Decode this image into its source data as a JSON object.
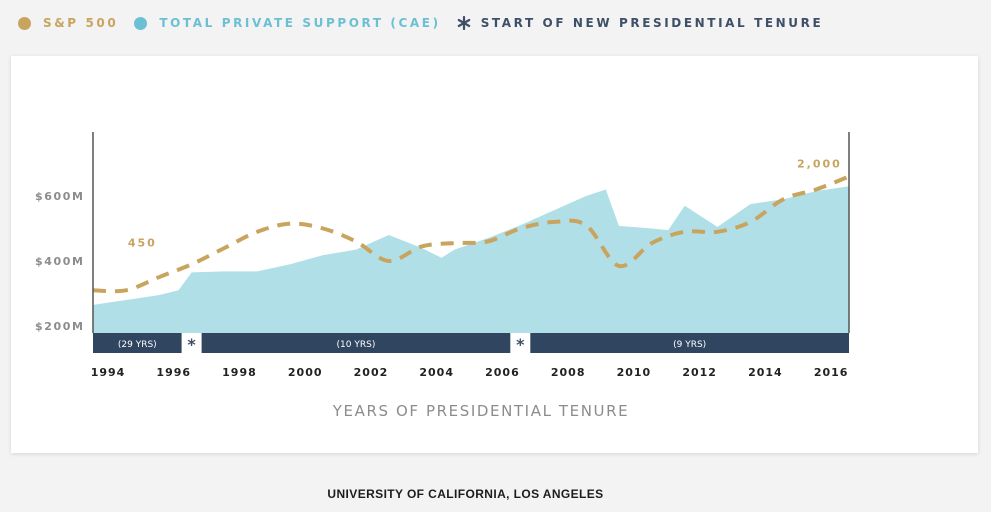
{
  "legend": [
    {
      "label": "S&P 500",
      "color": "#c9a45f",
      "marker": "dot"
    },
    {
      "label": "TOTAL PRIVATE SUPPORT (CAE)",
      "color": "#6cc0d4",
      "marker": "dot"
    },
    {
      "label": "START OF NEW PRESIDENTIAL TENURE",
      "color": "#3d5067",
      "marker": "asterisk"
    }
  ],
  "tenure_marker_glyph": "*",
  "footer": "UNIVERSITY OF CALIFORNIA, LOS ANGELES",
  "chart_data": {
    "type": "area",
    "xlabel": "YEARS OF PRESIDENTIAL TENURE",
    "ylabel": "",
    "xlim": [
      1994,
      2017
    ],
    "ylim": [
      175,
      775
    ],
    "x_ticks": [
      1994,
      1996,
      1998,
      2000,
      2002,
      2004,
      2006,
      2008,
      2010,
      2012,
      2014,
      2016
    ],
    "y_ticks": [
      {
        "value": 200,
        "label": "$200M"
      },
      {
        "value": 400,
        "label": "$400M"
      },
      {
        "value": 600,
        "label": "$600M"
      }
    ],
    "series": [
      {
        "name": "TOTAL PRIVATE SUPPORT (CAE)",
        "type": "area",
        "color": "#b1dfe8",
        "x": [
          1994,
          1995,
          1996,
          1996.6,
          1997,
          1998,
          1999,
          2000,
          2001,
          2002,
          2003,
          2004,
          2004.6,
          2005,
          2006,
          2007,
          2008,
          2009,
          2009.6,
          2010,
          2011,
          2011.5,
          2012,
          2013,
          2014,
          2015,
          2016,
          2017
        ],
        "y": [
          265,
          280,
          295,
          310,
          365,
          368,
          368,
          390,
          418,
          435,
          480,
          440,
          410,
          435,
          470,
          510,
          555,
          600,
          620,
          508,
          500,
          495,
          570,
          505,
          575,
          590,
          615,
          630
        ]
      },
      {
        "name": "S&P 500",
        "type": "line",
        "style": "dashed",
        "color": "#c9a45f",
        "x": [
          1994,
          1995,
          1996,
          1997,
          1998,
          1999,
          2000,
          2001,
          2002,
          2003,
          2004,
          2005,
          2006,
          2007,
          2008,
          2009,
          2010,
          2011,
          2012,
          2013,
          2014,
          2015,
          2016,
          2017
        ],
        "y": [
          310,
          310,
          350,
          390,
          440,
          490,
          515,
          500,
          460,
          400,
          445,
          455,
          460,
          500,
          520,
          510,
          385,
          455,
          490,
          490,
          520,
          590,
          620,
          660
        ]
      }
    ],
    "annotations": [
      {
        "text": "450",
        "x": 1995.5,
        "y": 445
      },
      {
        "text": "2,000",
        "x": 2016.1,
        "y": 688
      }
    ],
    "tenures": [
      {
        "label": "(29 YRS)",
        "start": 1994,
        "end": 1997
      },
      {
        "label": "(10 YRS)",
        "start": 1997,
        "end": 2007
      },
      {
        "label": "(9 YRS)",
        "start": 2007,
        "end": 2017
      }
    ],
    "grid": false
  }
}
